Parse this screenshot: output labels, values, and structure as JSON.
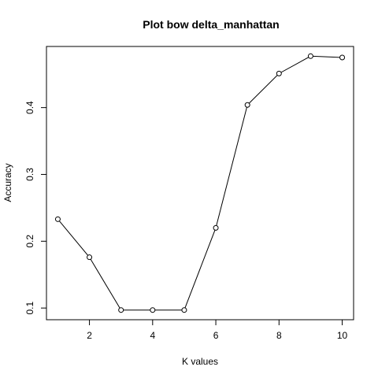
{
  "chart_data": {
    "type": "line",
    "title": "Plot bow delta_manhattan",
    "xlabel": "K values",
    "ylabel": "Accuracy",
    "x": [
      1,
      2,
      3,
      4,
      5,
      6,
      7,
      8,
      9,
      10
    ],
    "values": [
      0.233,
      0.176,
      0.097,
      0.097,
      0.097,
      0.22,
      0.404,
      0.451,
      0.477,
      0.475
    ],
    "xlim": [
      0.64,
      10.36
    ],
    "ylim": [
      0.0825,
      0.4915
    ],
    "xticks": [
      2,
      4,
      6,
      8,
      10
    ],
    "yticks": [
      0.1,
      0.2,
      0.3,
      0.4
    ],
    "xtick_labels": [
      "2",
      "4",
      "6",
      "8",
      "10"
    ],
    "ytick_labels": [
      "0.1",
      "0.2",
      "0.3",
      "0.4"
    ],
    "grid": false,
    "markers": "open-circle",
    "line_color": "#000000"
  }
}
